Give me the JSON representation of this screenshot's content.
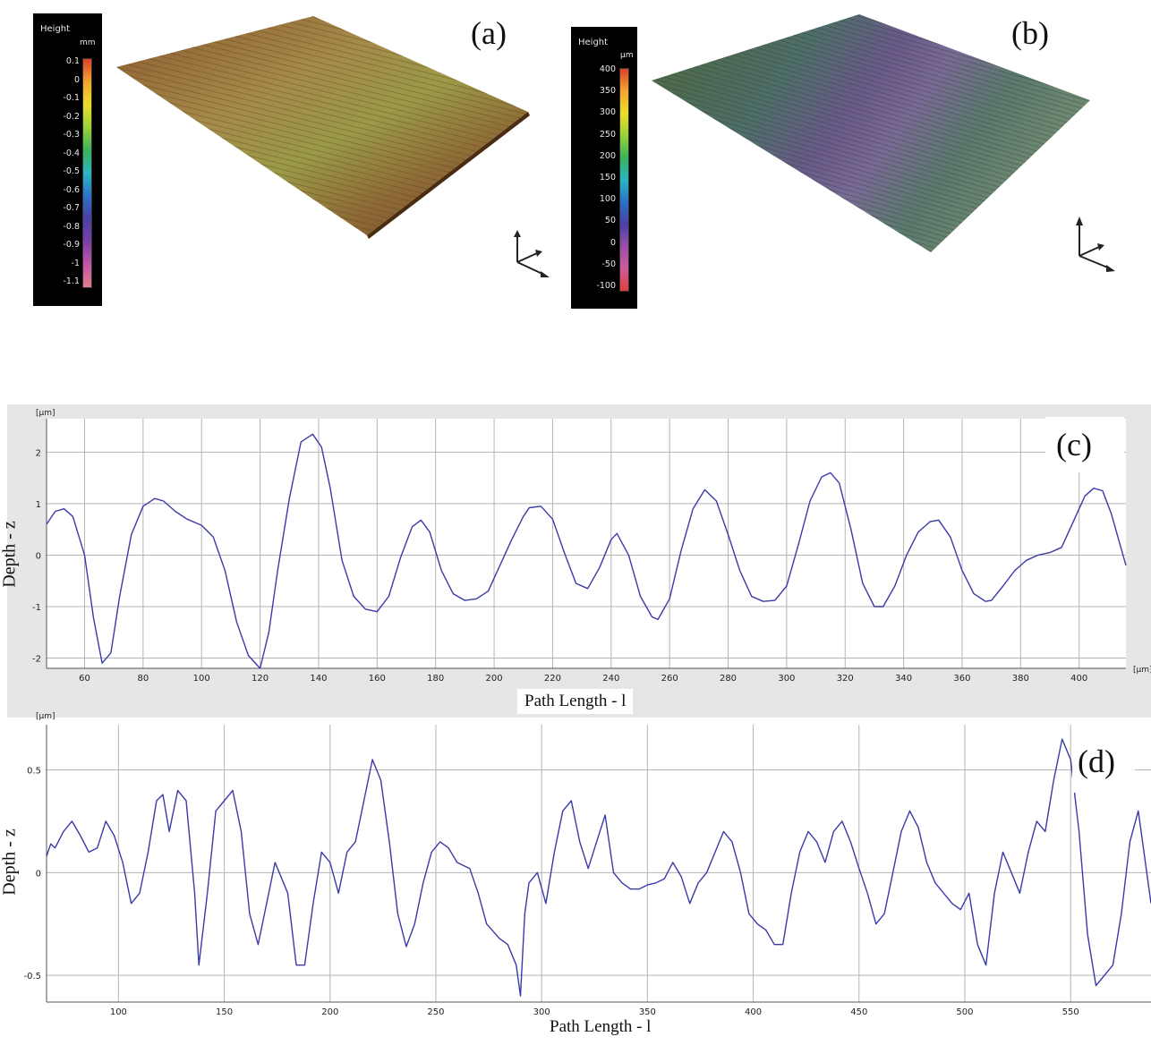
{
  "panels": {
    "a": {
      "label": "(a)",
      "colorbar": {
        "title": "Height",
        "unit": "mm",
        "ticks": [
          "0.1",
          "0",
          "-0.1",
          "-0.2",
          "-0.3",
          "-0.4",
          "-0.5",
          "-0.6",
          "-0.7",
          "-0.8",
          "-0.9",
          "-1",
          "-1.1"
        ]
      }
    },
    "b": {
      "label": "(b)",
      "colorbar": {
        "title": "Height",
        "unit": "µm",
        "ticks": [
          "400",
          "350",
          "300",
          "250",
          "200",
          "150",
          "100",
          "50",
          "0",
          "-50",
          "-100"
        ]
      }
    },
    "c": {
      "label": "(c)",
      "y_unit": "[µm]",
      "x_unit": "[µm]"
    },
    "d": {
      "label": "(d)",
      "y_unit": "[µm]"
    }
  },
  "colors": {
    "line": "#3a3aa8",
    "grid": "#b4b4b4",
    "chart_bg": "#ffffff",
    "frame_bg": "#e6e6e6"
  },
  "chart_data": [
    {
      "type": "line",
      "xlabel": "Path Length - l",
      "ylabel": "Depth - z",
      "xlim": [
        47,
        416
      ],
      "ylim": [
        -2.2,
        2.65
      ],
      "x_ticks": [
        60,
        80,
        100,
        120,
        140,
        160,
        180,
        200,
        220,
        240,
        260,
        280,
        300,
        320,
        340,
        360,
        380,
        400
      ],
      "y_ticks": [
        -2,
        -1,
        0,
        1,
        2
      ],
      "grid": true,
      "series": [
        {
          "x": [
            47,
            50,
            53,
            56,
            60,
            63,
            66,
            69,
            72,
            76,
            80,
            84,
            87,
            91,
            95,
            100,
            104,
            108,
            112,
            116,
            120,
            123,
            126,
            130,
            134,
            138,
            141,
            144,
            148,
            152,
            156,
            160,
            164,
            168,
            172,
            175,
            178,
            182,
            186,
            190,
            194,
            198,
            202,
            206,
            210,
            212,
            216,
            220,
            224,
            228,
            232,
            236,
            240,
            242,
            246,
            250,
            254,
            256,
            260,
            264,
            268,
            272,
            276,
            280,
            284,
            288,
            292,
            296,
            300,
            304,
            308,
            312,
            315,
            318,
            322,
            326,
            330,
            333,
            337,
            341,
            345,
            349,
            352,
            356,
            360,
            364,
            368,
            370,
            374,
            378,
            382,
            386,
            390,
            394,
            398,
            402,
            405,
            408,
            411,
            416
          ],
          "y": [
            0.6,
            0.85,
            0.9,
            0.75,
            0.0,
            -1.2,
            -2.1,
            -1.9,
            -0.8,
            0.4,
            0.95,
            1.1,
            1.05,
            0.85,
            0.7,
            0.58,
            0.35,
            -0.3,
            -1.3,
            -1.95,
            -2.2,
            -1.5,
            -0.3,
            1.1,
            2.2,
            2.35,
            2.1,
            1.3,
            -0.1,
            -0.8,
            -1.05,
            -1.1,
            -0.8,
            -0.05,
            0.55,
            0.68,
            0.45,
            -0.3,
            -0.75,
            -0.88,
            -0.85,
            -0.7,
            -0.2,
            0.3,
            0.75,
            0.92,
            0.95,
            0.7,
            0.05,
            -0.55,
            -0.65,
            -0.25,
            0.3,
            0.42,
            0.0,
            -0.8,
            -1.2,
            -1.25,
            -0.85,
            0.1,
            0.9,
            1.27,
            1.05,
            0.4,
            -0.3,
            -0.8,
            -0.9,
            -0.88,
            -0.6,
            0.2,
            1.05,
            1.52,
            1.6,
            1.4,
            0.5,
            -0.55,
            -1.0,
            -1.0,
            -0.6,
            0.0,
            0.45,
            0.65,
            0.68,
            0.35,
            -0.3,
            -0.75,
            -0.9,
            -0.88,
            -0.6,
            -0.3,
            -0.1,
            0.0,
            0.05,
            0.15,
            0.65,
            1.15,
            1.3,
            1.25,
            0.8,
            -0.2
          ]
        }
      ]
    },
    {
      "type": "line",
      "xlabel": "Path Length - l",
      "ylabel": "Depth - z",
      "xlim": [
        66,
        588
      ],
      "ylim": [
        -0.63,
        0.72
      ],
      "x_ticks": [
        100,
        150,
        200,
        250,
        300,
        350,
        400,
        450,
        500,
        550
      ],
      "y_ticks": [
        -0.5,
        0,
        0.5
      ],
      "grid": true,
      "series": [
        {
          "x": [
            66,
            68,
            70,
            74,
            78,
            82,
            86,
            90,
            94,
            98,
            102,
            106,
            110,
            114,
            118,
            121,
            124,
            128,
            132,
            136,
            138,
            142,
            146,
            150,
            154,
            158,
            162,
            166,
            170,
            174,
            180,
            184,
            188,
            192,
            196,
            200,
            204,
            208,
            212,
            216,
            220,
            224,
            228,
            232,
            236,
            240,
            244,
            248,
            252,
            256,
            260,
            266,
            270,
            274,
            280,
            284,
            288,
            290,
            292,
            294,
            298,
            302,
            306,
            310,
            314,
            318,
            322,
            326,
            330,
            334,
            338,
            342,
            346,
            350,
            354,
            358,
            362,
            366,
            370,
            374,
            378,
            382,
            386,
            390,
            394,
            398,
            402,
            406,
            410,
            414,
            418,
            422,
            426,
            430,
            434,
            438,
            442,
            446,
            450,
            454,
            458,
            462,
            466,
            470,
            474,
            478,
            482,
            486,
            490,
            494,
            498,
            502,
            506,
            510,
            514,
            518,
            522,
            526,
            530,
            534,
            538,
            542,
            546,
            550,
            554,
            558,
            562,
            566,
            570,
            574,
            578,
            582,
            588
          ],
          "y": [
            0.08,
            0.14,
            0.12,
            0.2,
            0.25,
            0.18,
            0.1,
            0.12,
            0.25,
            0.18,
            0.05,
            -0.15,
            -0.1,
            0.1,
            0.35,
            0.38,
            0.2,
            0.4,
            0.35,
            -0.1,
            -0.45,
            -0.1,
            0.3,
            0.35,
            0.4,
            0.2,
            -0.2,
            -0.35,
            -0.15,
            0.05,
            -0.1,
            -0.45,
            -0.45,
            -0.15,
            0.1,
            0.05,
            -0.1,
            0.1,
            0.15,
            0.35,
            0.55,
            0.45,
            0.15,
            -0.2,
            -0.36,
            -0.25,
            -0.05,
            0.1,
            0.15,
            0.12,
            0.05,
            0.02,
            -0.1,
            -0.25,
            -0.32,
            -0.35,
            -0.45,
            -0.6,
            -0.2,
            -0.05,
            0.0,
            -0.15,
            0.1,
            0.3,
            0.35,
            0.15,
            0.02,
            0.15,
            0.28,
            0.0,
            -0.05,
            -0.08,
            -0.08,
            -0.06,
            -0.05,
            -0.03,
            0.05,
            -0.02,
            -0.15,
            -0.05,
            0.0,
            0.1,
            0.2,
            0.15,
            0.0,
            -0.2,
            -0.25,
            -0.28,
            -0.35,
            -0.35,
            -0.1,
            0.1,
            0.2,
            0.15,
            0.05,
            0.2,
            0.25,
            0.15,
            0.02,
            -0.1,
            -0.25,
            -0.2,
            0.0,
            0.2,
            0.3,
            0.22,
            0.05,
            -0.05,
            -0.1,
            -0.15,
            -0.18,
            -0.1,
            -0.35,
            -0.45,
            -0.1,
            0.1,
            0.0,
            -0.1,
            0.1,
            0.25,
            0.2,
            0.45,
            0.65,
            0.55,
            0.2,
            -0.3,
            -0.55,
            -0.5,
            -0.45,
            -0.2,
            0.15,
            0.3,
            -0.15
          ]
        }
      ]
    }
  ]
}
